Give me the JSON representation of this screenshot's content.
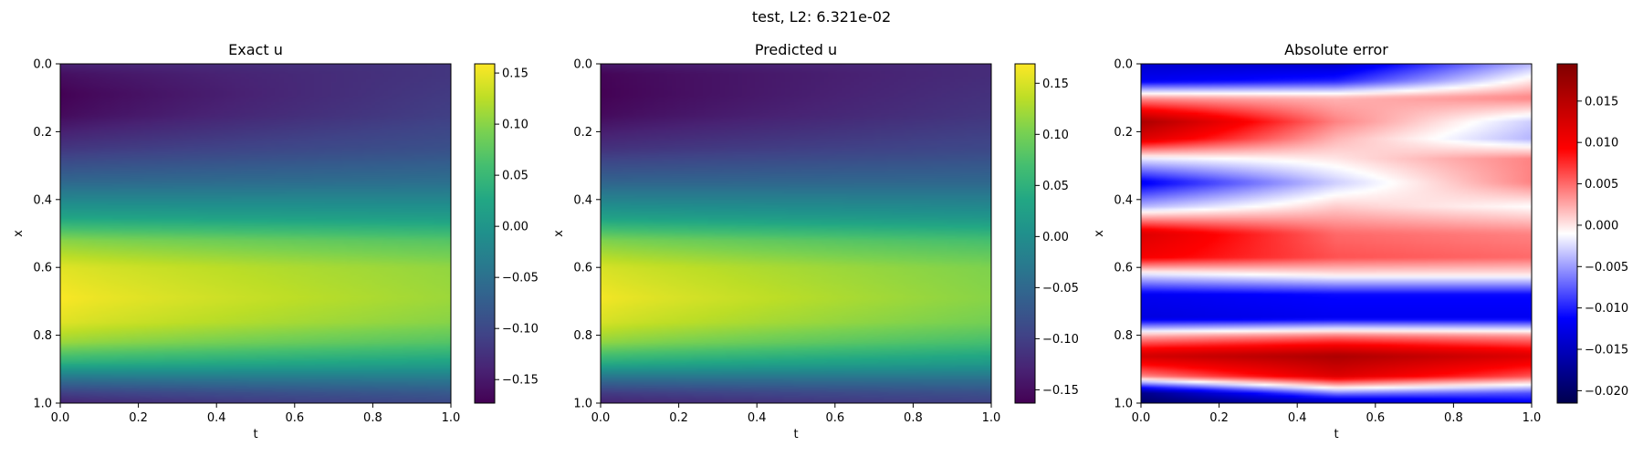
{
  "figure": {
    "suptitle": "test, L2: 6.321e-02"
  },
  "chart_data": [
    {
      "type": "heatmap",
      "title": "Exact u",
      "xlabel": "t",
      "ylabel": "x",
      "xlim": [
        0,
        1
      ],
      "ylim": [
        1,
        0
      ],
      "colormap": "viridis",
      "x_ticks": [
        "0.0",
        "0.2",
        "0.4",
        "0.6",
        "0.8",
        "1.0"
      ],
      "y_ticks": [
        "0.0",
        "0.2",
        "0.4",
        "0.6",
        "0.8",
        "1.0"
      ],
      "colorbar": {
        "vmin": -0.173,
        "vmax": 0.159,
        "ticks": [
          "0.15",
          "0.10",
          "0.05",
          "0.00",
          "−0.05",
          "−0.10",
          "−0.15"
        ]
      },
      "profile_x": [
        0.0,
        0.03,
        0.09,
        0.15,
        0.25,
        0.35,
        0.45,
        0.52,
        0.6,
        0.69,
        0.76,
        0.82,
        0.88,
        0.93,
        0.97,
        1.0
      ],
      "values_t0": [
        -0.14,
        -0.16,
        -0.173,
        -0.165,
        -0.12,
        -0.06,
        0.02,
        0.1,
        0.145,
        0.158,
        0.145,
        0.11,
        0.04,
        -0.05,
        -0.11,
        -0.14
      ],
      "values_t1": [
        -0.12,
        -0.12,
        -0.115,
        -0.11,
        -0.09,
        -0.05,
        0.01,
        0.07,
        0.105,
        0.11,
        0.1,
        0.07,
        0.02,
        -0.04,
        -0.08,
        -0.1
      ]
    },
    {
      "type": "heatmap",
      "title": "Predicted u",
      "xlabel": "t",
      "ylabel": "x",
      "xlim": [
        0,
        1
      ],
      "ylim": [
        1,
        0
      ],
      "colormap": "viridis",
      "x_ticks": [
        "0.0",
        "0.2",
        "0.4",
        "0.6",
        "0.8",
        "1.0"
      ],
      "y_ticks": [
        "0.0",
        "0.2",
        "0.4",
        "0.6",
        "0.8",
        "1.0"
      ],
      "colorbar": {
        "vmin": -0.163,
        "vmax": 0.169,
        "ticks": [
          "0.15",
          "0.10",
          "0.05",
          "0.00",
          "−0.05",
          "−0.10",
          "−0.15"
        ]
      },
      "profile_x": [
        0.0,
        0.03,
        0.09,
        0.15,
        0.25,
        0.35,
        0.45,
        0.52,
        0.6,
        0.69,
        0.76,
        0.82,
        0.88,
        0.93,
        0.97,
        1.0
      ],
      "values_t0": [
        -0.14,
        -0.16,
        -0.163,
        -0.155,
        -0.115,
        -0.055,
        0.025,
        0.105,
        0.15,
        0.165,
        0.15,
        0.115,
        0.045,
        -0.045,
        -0.105,
        -0.13
      ],
      "values_t1": [
        -0.12,
        -0.12,
        -0.115,
        -0.11,
        -0.09,
        -0.05,
        0.01,
        0.07,
        0.105,
        0.11,
        0.1,
        0.07,
        0.02,
        -0.04,
        -0.08,
        -0.1
      ]
    },
    {
      "type": "heatmap",
      "title": "Absolute error",
      "xlabel": "t",
      "ylabel": "x",
      "xlim": [
        0,
        1
      ],
      "ylim": [
        1,
        0
      ],
      "colormap": "seismic",
      "x_ticks": [
        "0.0",
        "0.2",
        "0.4",
        "0.6",
        "0.8",
        "1.0"
      ],
      "y_ticks": [
        "0.0",
        "0.2",
        "0.4",
        "0.6",
        "0.8",
        "1.0"
      ],
      "colorbar": {
        "vmin": -0.0215,
        "vmax": 0.0195,
        "ticks": [
          "0.015",
          "0.010",
          "0.005",
          "0.000",
          "−0.005",
          "−0.010",
          "−0.015",
          "−0.020"
        ]
      },
      "profile_x": [
        0.0,
        0.05,
        0.1,
        0.17,
        0.22,
        0.28,
        0.35,
        0.42,
        0.5,
        0.57,
        0.62,
        0.68,
        0.75,
        0.8,
        0.86,
        0.92,
        0.97,
        1.0
      ],
      "values_t0": [
        -0.014,
        -0.012,
        0.003,
        0.016,
        0.012,
        -0.002,
        -0.012,
        -0.004,
        0.012,
        0.01,
        -0.002,
        -0.012,
        -0.013,
        0.002,
        0.013,
        0.004,
        -0.018,
        -0.02
      ],
      "values_t05": [
        -0.014,
        -0.01,
        0.002,
        0.004,
        0.002,
        0.0,
        -0.003,
        0.001,
        0.005,
        0.006,
        0.0,
        -0.011,
        -0.012,
        0.004,
        0.016,
        0.012,
        -0.006,
        -0.016
      ],
      "values_t1": [
        -0.004,
        0.0,
        0.004,
        -0.003,
        -0.004,
        0.004,
        0.004,
        -0.001,
        0.004,
        0.005,
        0.0,
        -0.011,
        -0.012,
        0.003,
        0.012,
        0.006,
        -0.008,
        -0.012
      ]
    }
  ]
}
